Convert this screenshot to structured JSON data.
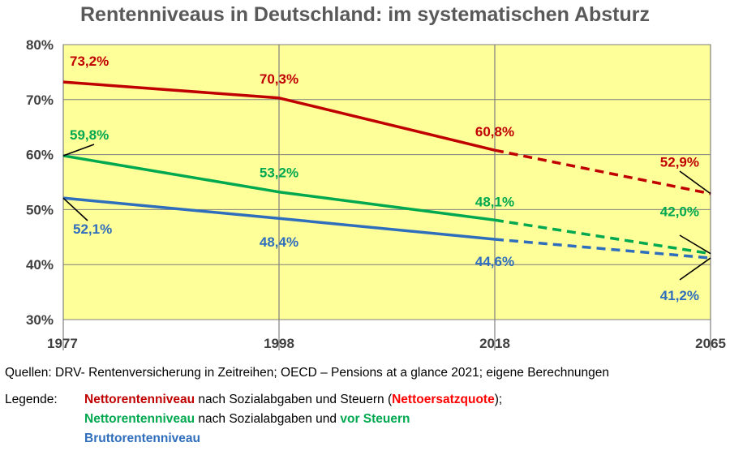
{
  "chart_data": {
    "type": "line",
    "title": "Rentenniveaus in Deutschland: im systematischen Absturz",
    "x": [
      "1977",
      "1998",
      "2018",
      "2065"
    ],
    "yticks": [
      "30%",
      "40%",
      "50%",
      "60%",
      "70%",
      "80%"
    ],
    "ylim": [
      30,
      80
    ],
    "grid": true,
    "background": "#ffff99",
    "series": [
      {
        "key": "netto_nach",
        "color": "#c00000",
        "values": [
          73.2,
          70.3,
          60.8,
          52.9
        ],
        "labels": [
          "73,2%",
          "70,3%",
          "60,8%",
          "52,9%"
        ],
        "dashed_from_index": 2
      },
      {
        "key": "netto_vor",
        "color": "#00a84f",
        "values": [
          59.8,
          53.2,
          48.1,
          42.0
        ],
        "labels": [
          "59,8%",
          "53,2%",
          "48,1%",
          "42,0%"
        ],
        "dashed_from_index": 2
      },
      {
        "key": "brutto",
        "color": "#2f6ebd",
        "values": [
          52.1,
          48.4,
          44.6,
          41.2
        ],
        "labels": [
          "52,1%",
          "48,4%",
          "44,6%",
          "41,2%"
        ],
        "dashed_from_index": 2
      }
    ]
  },
  "sources": "Quellen: DRV- Rentenversicherung in Zeitreihen; OECD – Pensions at a glance 2021; eigene Berechnungen",
  "legend": {
    "label": "Legende:",
    "line1": {
      "a": "Nettorentenniveau",
      "b": " nach Sozialabgaben und Steuern (",
      "c": "Nettoersatzquote",
      "d": ");"
    },
    "line2": {
      "a": "Nettorentenniveau",
      "b": " nach Sozialabgaben und ",
      "c": "vor Steuern"
    },
    "line3": {
      "a": "Bruttorentenniveau"
    }
  }
}
